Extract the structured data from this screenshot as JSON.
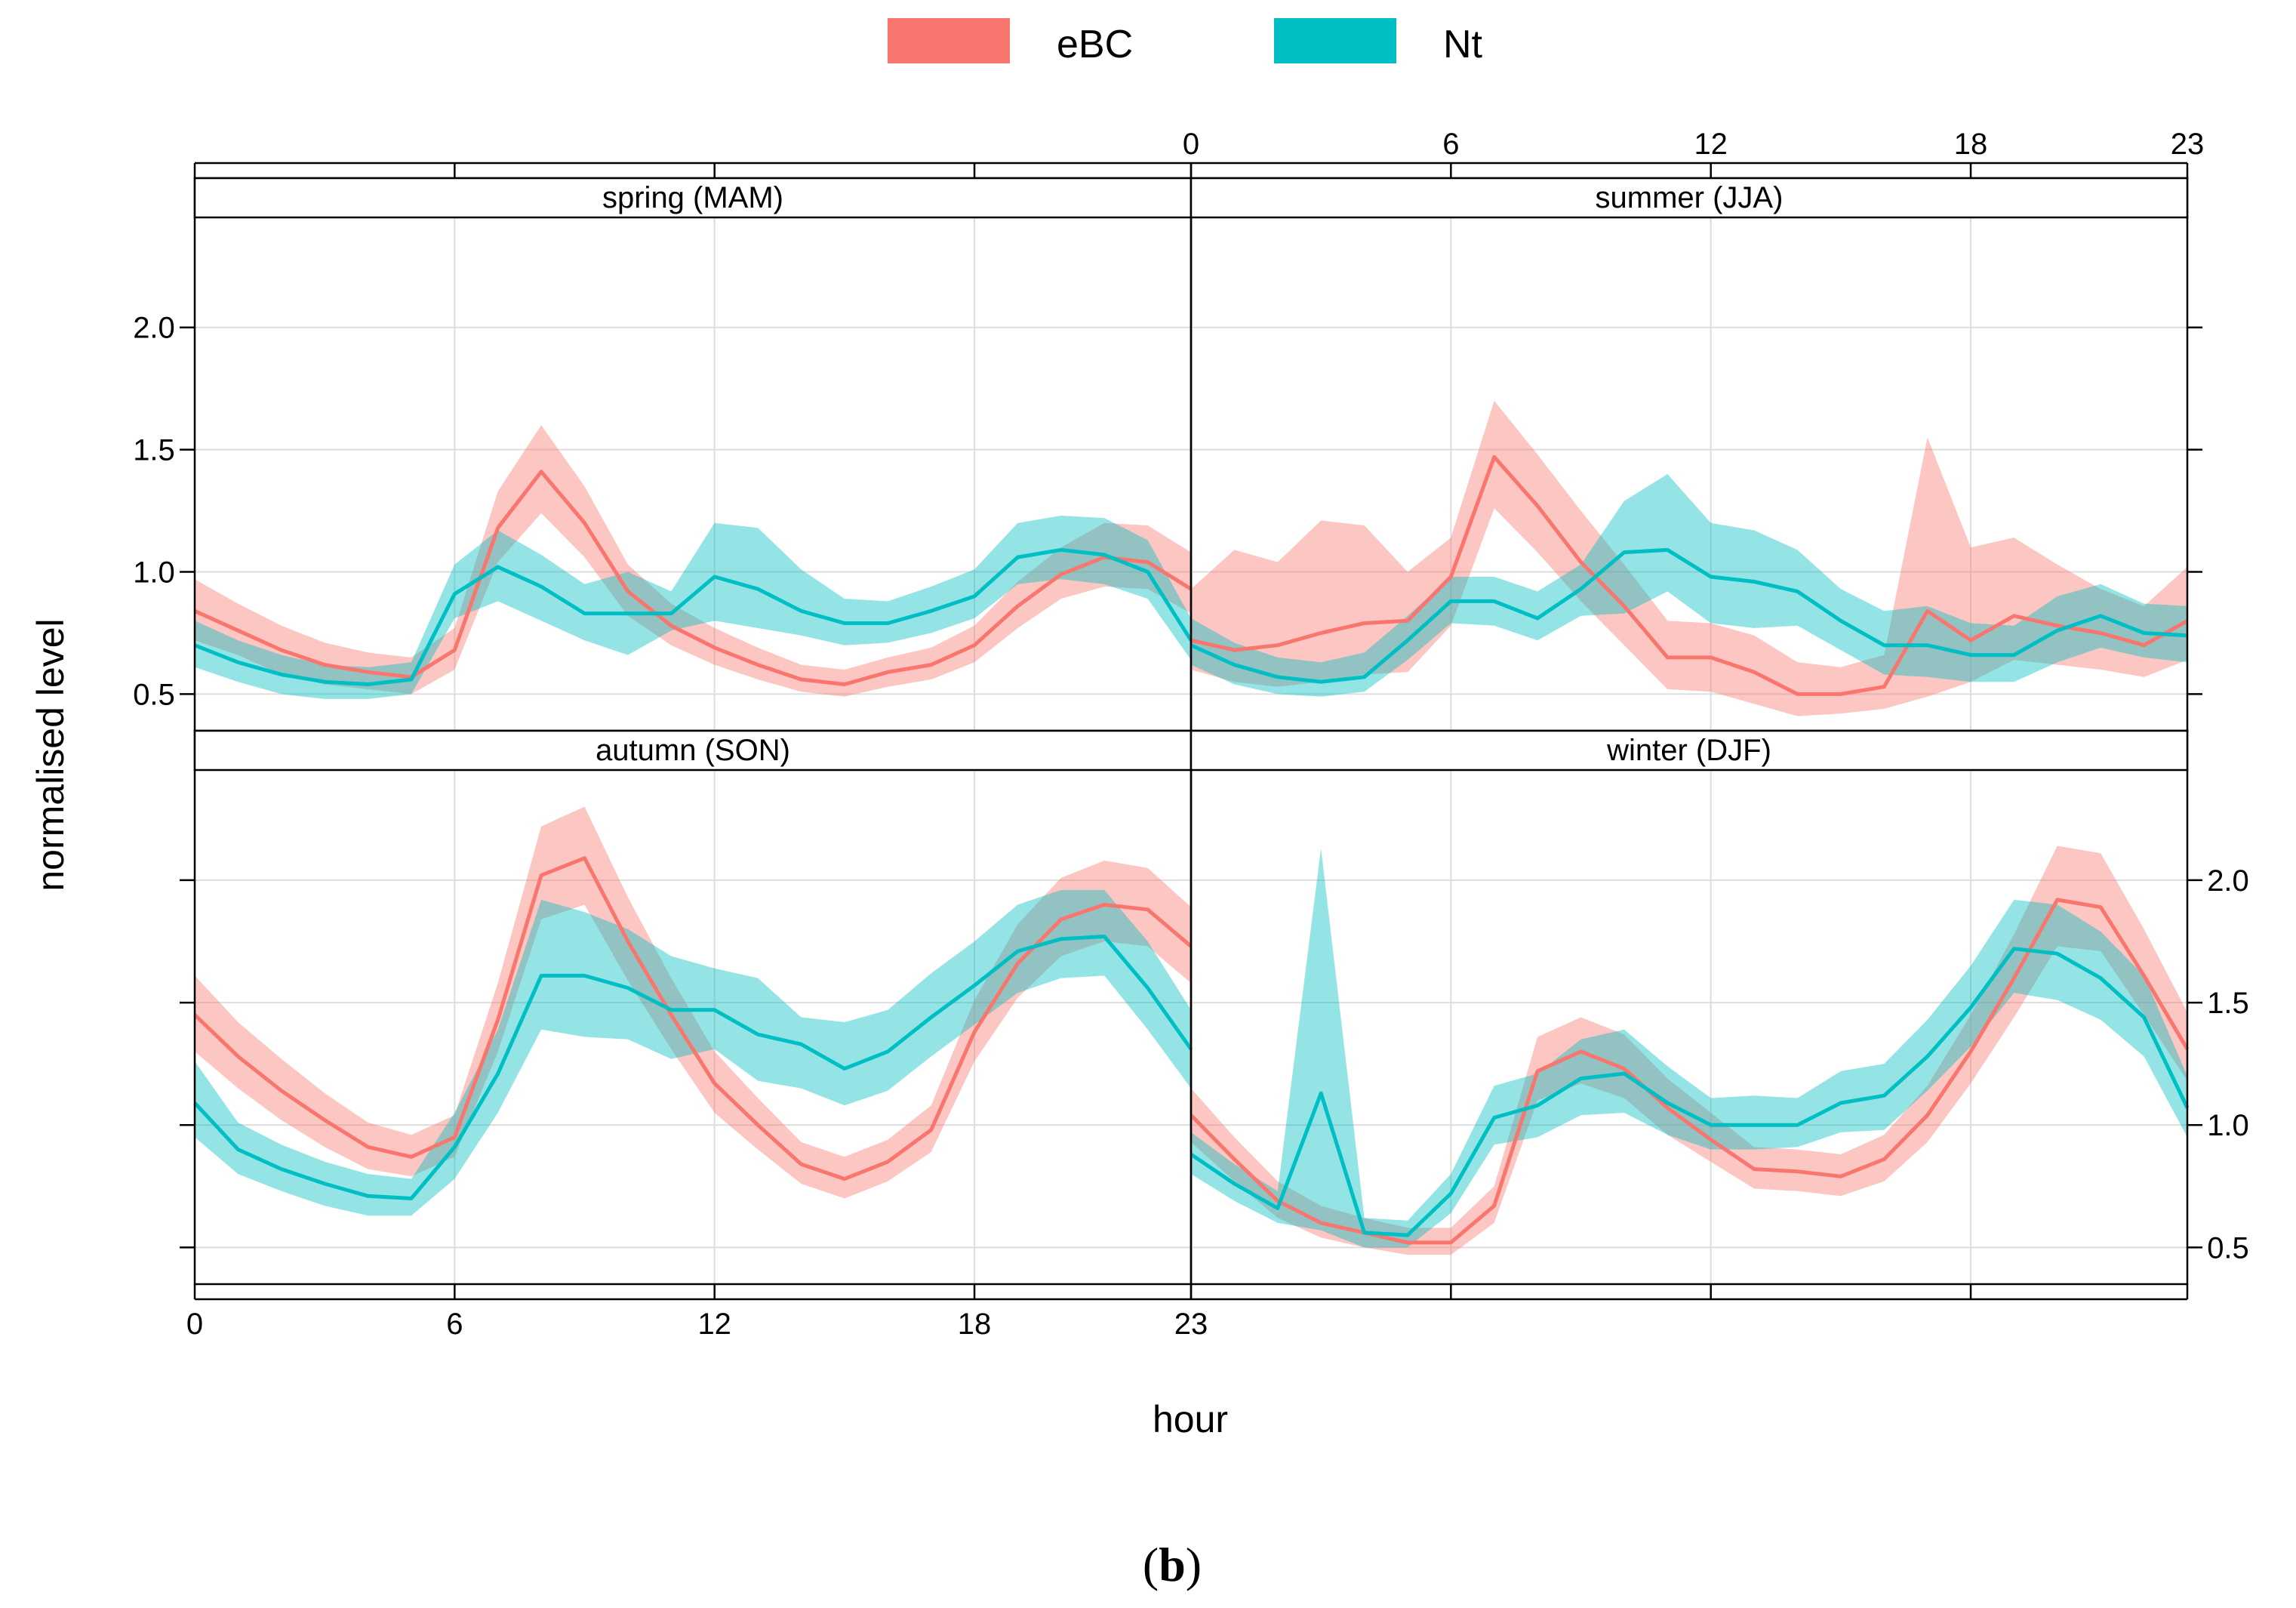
{
  "caption": {
    "open": "(",
    "letter": "b",
    "close": ")"
  },
  "colors": {
    "eBC": "#F8766D",
    "Nt": "#00BFC4",
    "frame": "#000000",
    "grid": "#dddddd"
  },
  "chart_data": {
    "type": "line",
    "xlabel": "hour",
    "ylabel": "normalised level",
    "x_ticks": [
      "0",
      "6",
      "12",
      "18",
      "23"
    ],
    "y_ticks": [
      "0.5",
      "1.0",
      "1.5",
      "2.0"
    ],
    "xlim": [
      0,
      23
    ],
    "ylim": [
      0.35,
      2.45
    ],
    "grid": true,
    "legend_position": "top",
    "legend": [
      "eBC",
      "Nt"
    ],
    "panels": [
      {
        "title": "spring (MAM)",
        "series": [
          {
            "name": "eBC",
            "mean": [
              0.84,
              0.76,
              0.68,
              0.62,
              0.59,
              0.57,
              0.68,
              1.18,
              1.41,
              1.2,
              0.92,
              0.78,
              0.69,
              0.62,
              0.56,
              0.54,
              0.59,
              0.62,
              0.7,
              0.86,
              0.99,
              1.06,
              1.04,
              0.93
            ],
            "lower": [
              0.72,
              0.66,
              0.58,
              0.54,
              0.52,
              0.5,
              0.6,
              1.04,
              1.24,
              1.06,
              0.82,
              0.7,
              0.62,
              0.56,
              0.51,
              0.49,
              0.53,
              0.56,
              0.63,
              0.77,
              0.89,
              0.94,
              0.93,
              0.83
            ],
            "upper": [
              0.97,
              0.87,
              0.78,
              0.71,
              0.67,
              0.65,
              0.77,
              1.33,
              1.6,
              1.35,
              1.03,
              0.87,
              0.77,
              0.69,
              0.62,
              0.6,
              0.65,
              0.69,
              0.78,
              0.96,
              1.1,
              1.2,
              1.19,
              1.08
            ]
          },
          {
            "name": "Nt",
            "mean": [
              0.7,
              0.63,
              0.58,
              0.55,
              0.54,
              0.56,
              0.91,
              1.02,
              0.94,
              0.83,
              0.83,
              0.83,
              0.98,
              0.93,
              0.84,
              0.79,
              0.79,
              0.84,
              0.9,
              1.06,
              1.09,
              1.07,
              1.0,
              0.72
            ],
            "lower": [
              0.61,
              0.55,
              0.5,
              0.48,
              0.48,
              0.5,
              0.81,
              0.88,
              0.8,
              0.72,
              0.66,
              0.76,
              0.8,
              0.77,
              0.74,
              0.7,
              0.71,
              0.75,
              0.81,
              0.95,
              0.97,
              0.95,
              0.89,
              0.64
            ],
            "upper": [
              0.8,
              0.72,
              0.66,
              0.62,
              0.61,
              0.63,
              1.03,
              1.17,
              1.07,
              0.95,
              1.0,
              0.92,
              1.2,
              1.18,
              1.01,
              0.89,
              0.88,
              0.94,
              1.01,
              1.2,
              1.23,
              1.22,
              1.13,
              0.81
            ]
          }
        ]
      },
      {
        "title": "summer (JJA)",
        "series": [
          {
            "name": "eBC",
            "mean": [
              0.72,
              0.68,
              0.7,
              0.75,
              0.79,
              0.8,
              0.98,
              1.47,
              1.27,
              1.04,
              0.86,
              0.65,
              0.65,
              0.59,
              0.5,
              0.5,
              0.53,
              0.84,
              0.72,
              0.82,
              0.78,
              0.75,
              0.7,
              0.8
            ],
            "lower": [
              0.6,
              0.55,
              0.53,
              0.55,
              0.58,
              0.59,
              0.78,
              1.26,
              1.08,
              0.88,
              0.7,
              0.52,
              0.51,
              0.46,
              0.41,
              0.42,
              0.44,
              0.49,
              0.55,
              0.64,
              0.62,
              0.6,
              0.57,
              0.64
            ],
            "upper": [
              0.93,
              1.09,
              1.04,
              1.21,
              1.19,
              1.0,
              1.14,
              1.7,
              1.48,
              1.25,
              1.03,
              0.8,
              0.79,
              0.74,
              0.63,
              0.61,
              0.66,
              1.55,
              1.1,
              1.14,
              1.03,
              0.93,
              0.86,
              1.02
            ]
          },
          {
            "name": "Nt",
            "mean": [
              0.7,
              0.62,
              0.57,
              0.55,
              0.57,
              0.72,
              0.88,
              0.88,
              0.81,
              0.93,
              1.08,
              1.09,
              0.98,
              0.96,
              0.92,
              0.8,
              0.7,
              0.7,
              0.66,
              0.66,
              0.76,
              0.82,
              0.75,
              0.74
            ],
            "lower": [
              0.62,
              0.54,
              0.5,
              0.49,
              0.51,
              0.64,
              0.79,
              0.78,
              0.72,
              0.82,
              0.83,
              0.92,
              0.79,
              0.77,
              0.78,
              0.68,
              0.58,
              0.57,
              0.55,
              0.55,
              0.63,
              0.69,
              0.65,
              0.63
            ],
            "upper": [
              0.81,
              0.71,
              0.65,
              0.63,
              0.67,
              0.82,
              0.98,
              0.98,
              0.92,
              1.03,
              1.29,
              1.4,
              1.2,
              1.17,
              1.09,
              0.93,
              0.84,
              0.86,
              0.79,
              0.78,
              0.9,
              0.95,
              0.87,
              0.86
            ]
          }
        ]
      },
      {
        "title": "autumn (SON)",
        "series": [
          {
            "name": "eBC",
            "mean": [
              1.45,
              1.28,
              1.14,
              1.02,
              0.91,
              0.87,
              0.95,
              1.43,
              2.02,
              2.09,
              1.75,
              1.45,
              1.17,
              1.0,
              0.84,
              0.78,
              0.85,
              0.98,
              1.38,
              1.66,
              1.84,
              1.9,
              1.88,
              1.73
            ],
            "lower": [
              1.3,
              1.15,
              1.02,
              0.91,
              0.82,
              0.79,
              0.87,
              1.3,
              1.84,
              1.9,
              1.59,
              1.31,
              1.05,
              0.9,
              0.76,
              0.7,
              0.77,
              0.89,
              1.26,
              1.52,
              1.69,
              1.75,
              1.73,
              1.58
            ],
            "upper": [
              1.61,
              1.42,
              1.27,
              1.13,
              1.01,
              0.96,
              1.04,
              1.58,
              2.22,
              2.3,
              1.93,
              1.6,
              1.3,
              1.11,
              0.93,
              0.87,
              0.94,
              1.08,
              1.51,
              1.82,
              2.01,
              2.08,
              2.05,
              1.89
            ]
          },
          {
            "name": "Nt",
            "mean": [
              1.09,
              0.9,
              0.82,
              0.76,
              0.71,
              0.7,
              0.91,
              1.21,
              1.61,
              1.61,
              1.56,
              1.47,
              1.47,
              1.37,
              1.33,
              1.23,
              1.3,
              1.44,
              1.57,
              1.71,
              1.76,
              1.77,
              1.56,
              1.31
            ],
            "lower": [
              0.95,
              0.8,
              0.73,
              0.67,
              0.63,
              0.63,
              0.78,
              1.05,
              1.39,
              1.36,
              1.35,
              1.27,
              1.31,
              1.18,
              1.15,
              1.08,
              1.14,
              1.28,
              1.41,
              1.54,
              1.6,
              1.61,
              1.39,
              1.15
            ],
            "upper": [
              1.26,
              1.01,
              0.92,
              0.85,
              0.8,
              0.78,
              1.05,
              1.39,
              1.92,
              1.87,
              1.8,
              1.69,
              1.64,
              1.6,
              1.44,
              1.42,
              1.47,
              1.62,
              1.75,
              1.9,
              1.96,
              1.96,
              1.75,
              1.47
            ]
          }
        ]
      },
      {
        "title": "winter (DJF)",
        "series": [
          {
            "name": "eBC",
            "mean": [
              1.04,
              0.86,
              0.69,
              0.6,
              0.56,
              0.52,
              0.52,
              0.67,
              1.22,
              1.3,
              1.23,
              1.07,
              0.94,
              0.82,
              0.81,
              0.79,
              0.86,
              1.04,
              1.3,
              1.6,
              1.92,
              1.89,
              1.61,
              1.31
            ],
            "lower": [
              0.93,
              0.77,
              0.62,
              0.54,
              0.5,
              0.47,
              0.47,
              0.6,
              1.1,
              1.17,
              1.11,
              0.96,
              0.85,
              0.74,
              0.73,
              0.71,
              0.77,
              0.93,
              1.17,
              1.44,
              1.73,
              1.71,
              1.45,
              1.18
            ],
            "upper": [
              1.15,
              0.95,
              0.77,
              0.67,
              0.62,
              0.58,
              0.58,
              0.75,
              1.36,
              1.44,
              1.37,
              1.19,
              1.05,
              0.91,
              0.9,
              0.88,
              0.96,
              1.16,
              1.45,
              1.78,
              2.14,
              2.11,
              1.8,
              1.46
            ]
          },
          {
            "name": "Nt",
            "mean": [
              0.88,
              0.76,
              0.66,
              1.13,
              0.56,
              0.55,
              0.72,
              1.03,
              1.08,
              1.19,
              1.21,
              1.09,
              1.0,
              1.0,
              1.0,
              1.09,
              1.12,
              1.28,
              1.48,
              1.72,
              1.7,
              1.6,
              1.44,
              1.07
            ],
            "lower": [
              0.8,
              0.69,
              0.6,
              0.57,
              0.5,
              0.5,
              0.64,
              0.92,
              0.95,
              1.04,
              1.05,
              0.96,
              0.9,
              0.9,
              0.91,
              0.97,
              0.98,
              1.14,
              1.32,
              1.54,
              1.51,
              1.43,
              1.28,
              0.95
            ],
            "upper": [
              0.97,
              0.84,
              0.73,
              2.13,
              0.62,
              0.61,
              0.8,
              1.16,
              1.21,
              1.35,
              1.39,
              1.24,
              1.11,
              1.12,
              1.11,
              1.22,
              1.25,
              1.43,
              1.65,
              1.92,
              1.9,
              1.79,
              1.61,
              1.2
            ]
          }
        ]
      }
    ]
  }
}
